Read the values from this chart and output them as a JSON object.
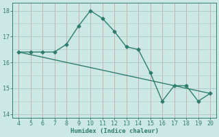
{
  "xlabel": "Humidex (Indice chaleur)",
  "x": [
    4,
    5,
    6,
    7,
    8,
    9,
    10,
    11,
    12,
    13,
    14,
    15,
    16,
    17,
    18,
    19,
    20
  ],
  "y_curve": [
    16.4,
    16.4,
    16.4,
    16.4,
    16.7,
    17.4,
    18.0,
    17.7,
    17.2,
    16.6,
    16.5,
    15.6,
    14.5,
    15.1,
    15.1,
    14.5,
    14.8
  ],
  "y_line": [
    16.4,
    16.3,
    16.2,
    16.1,
    16.0,
    15.9,
    15.8,
    15.7,
    15.6,
    15.5,
    15.4,
    15.3,
    15.2,
    15.1,
    15.0,
    14.9,
    14.8
  ],
  "xlim": [
    3.5,
    20.5
  ],
  "ylim": [
    13.85,
    18.3
  ],
  "yticks": [
    14,
    15,
    16,
    17,
    18
  ],
  "xticks": [
    4,
    5,
    6,
    7,
    8,
    9,
    10,
    11,
    12,
    13,
    14,
    15,
    16,
    17,
    18,
    19,
    20
  ],
  "line_color": "#2e7d6d",
  "bg_color": "#cce8e4",
  "grid_major_color": "#b8d4d0",
  "grid_minor_color": "#d4bcbc",
  "tick_color": "#2e7d6d",
  "label_color": "#2e7d6d",
  "marker": "D",
  "markersize": 2.5,
  "linewidth": 1.0
}
